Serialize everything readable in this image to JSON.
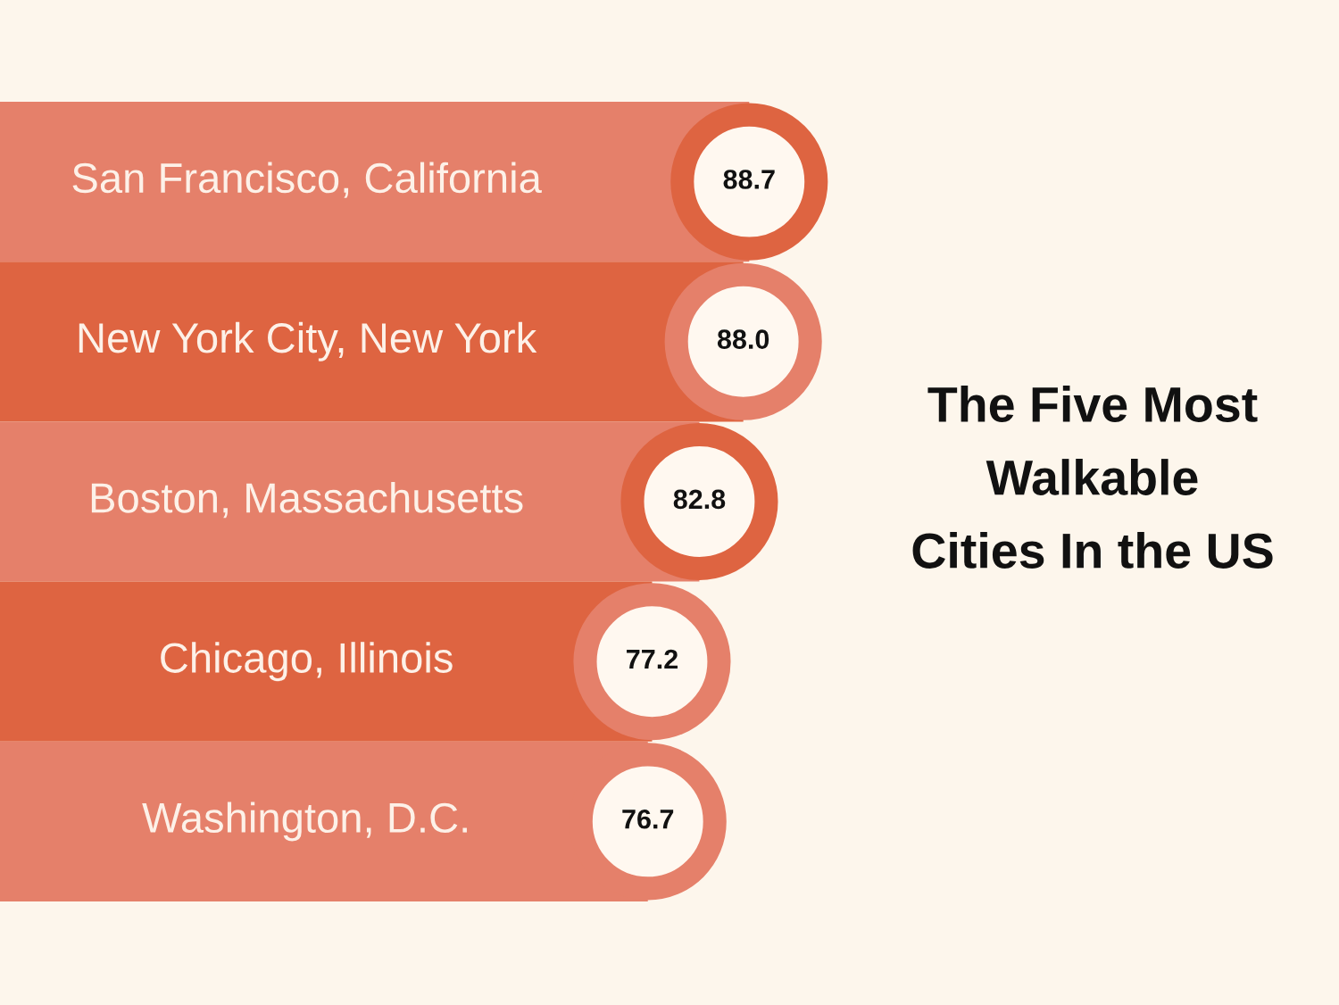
{
  "chart_data": {
    "type": "bar",
    "orientation": "horizontal",
    "title": "The Five Most\nWalkable\nCities In the US",
    "categories": [
      "San Francisco, California",
      "New York City, New York",
      "Boston, Massachusetts",
      "Chicago, Illinois",
      "Washington, D.C."
    ],
    "values": [
      88.7,
      88.0,
      82.8,
      77.2,
      76.7
    ],
    "value_labels": [
      "88.7",
      "88.0",
      "82.8",
      "77.2",
      "76.7"
    ],
    "colors": [
      "#e5806a",
      "#de6441",
      "#e5806a",
      "#de6441",
      "#e5806a"
    ]
  }
}
